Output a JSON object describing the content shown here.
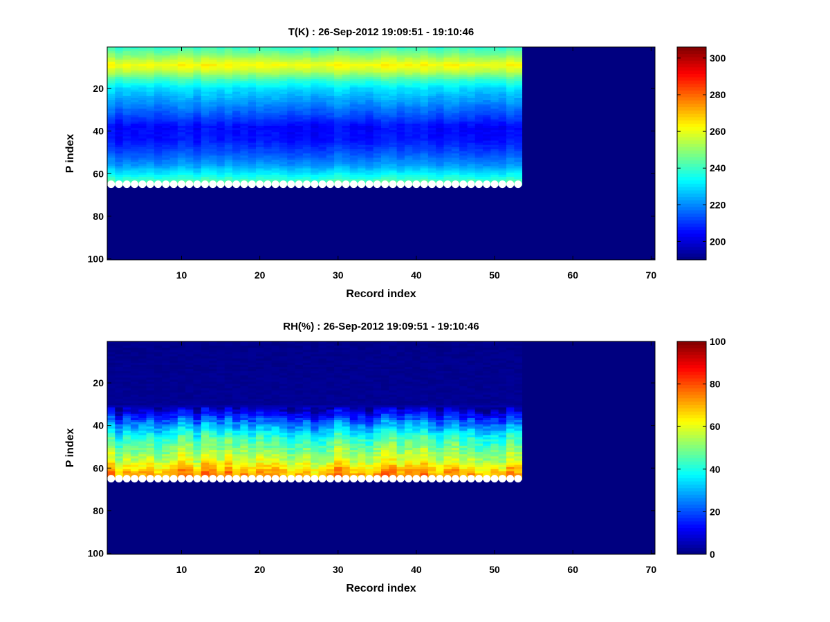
{
  "chart_data": [
    {
      "type": "heatmap",
      "title": "T(K) : 26-Sep-2012 19:09:51 - 19:10:46",
      "xlabel": "Record index",
      "ylabel": "P index",
      "xlim": [
        0.5,
        70.5
      ],
      "ylim": [
        0.5,
        100.5
      ],
      "y_reversed": true,
      "xticks": [
        10,
        20,
        30,
        40,
        50,
        60,
        70
      ],
      "yticks": [
        20,
        40,
        60,
        80,
        100
      ],
      "data_records": 53,
      "surface_level_index": 65,
      "colorbar": {
        "min": 190,
        "max": 306,
        "ticks": [
          200,
          220,
          240,
          260,
          280,
          300
        ]
      },
      "fill_value": 190,
      "profile": [
        {
          "p": 1,
          "value": 240
        },
        {
          "p": 5,
          "value": 250
        },
        {
          "p": 9,
          "value": 262
        },
        {
          "p": 12,
          "value": 255
        },
        {
          "p": 16,
          "value": 240
        },
        {
          "p": 20,
          "value": 230
        },
        {
          "p": 26,
          "value": 222
        },
        {
          "p": 32,
          "value": 214
        },
        {
          "p": 38,
          "value": 205
        },
        {
          "p": 44,
          "value": 206
        },
        {
          "p": 50,
          "value": 213
        },
        {
          "p": 56,
          "value": 222
        },
        {
          "p": 60,
          "value": 232
        },
        {
          "p": 63,
          "value": 240
        },
        {
          "p": 65,
          "value": 244
        }
      ],
      "record_variation": 5,
      "markers": {
        "label": "surface level",
        "color": "#ffffff"
      }
    },
    {
      "type": "heatmap",
      "title": "RH(%) : 26-Sep-2012 19:09:51 - 19:10:46",
      "xlabel": "Record index",
      "ylabel": "P index",
      "xlim": [
        0.5,
        70.5
      ],
      "ylim": [
        0.5,
        100.5
      ],
      "y_reversed": true,
      "xticks": [
        10,
        20,
        30,
        40,
        50,
        60,
        70
      ],
      "yticks": [
        20,
        40,
        60,
        80,
        100
      ],
      "data_records": 53,
      "surface_level_index": 65,
      "colorbar": {
        "min": 0,
        "max": 100,
        "ticks": [
          0,
          20,
          40,
          60,
          80,
          100
        ]
      },
      "fill_value": 0,
      "profile": [
        {
          "p": 1,
          "value": 0
        },
        {
          "p": 30,
          "value": 1
        },
        {
          "p": 34,
          "value": 10
        },
        {
          "p": 38,
          "value": 22
        },
        {
          "p": 42,
          "value": 32
        },
        {
          "p": 46,
          "value": 42
        },
        {
          "p": 50,
          "value": 48
        },
        {
          "p": 54,
          "value": 54
        },
        {
          "p": 57,
          "value": 58
        },
        {
          "p": 59,
          "value": 64
        },
        {
          "p": 61,
          "value": 68
        },
        {
          "p": 63,
          "value": 72
        },
        {
          "p": 65,
          "value": 70
        }
      ],
      "record_variation": 14,
      "markers": {
        "label": "surface level",
        "color": "#ffffff"
      }
    }
  ]
}
